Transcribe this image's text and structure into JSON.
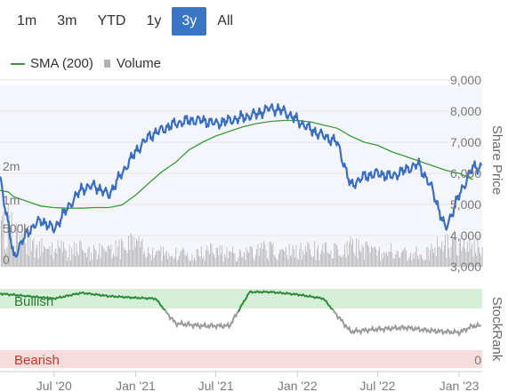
{
  "range_buttons": [
    {
      "label": "1m",
      "active": false
    },
    {
      "label": "3m",
      "active": false
    },
    {
      "label": "YTD",
      "active": false
    },
    {
      "label": "1y",
      "active": false
    },
    {
      "label": "3y",
      "active": true
    },
    {
      "label": "All",
      "active": false
    }
  ],
  "legend": {
    "sma_label": "SMA (200)",
    "volume_label": "Volume"
  },
  "colors": {
    "price": "#3a6fc0",
    "sma": "#3a9c3a",
    "volume": "#b3b3b3",
    "bullish_bg": "#d6efd9",
    "bearish_bg": "#f7dcdc",
    "rank_bull": "#2e8b3a",
    "rank_bear": "#9a9a9a",
    "active_button": "#3a75c4"
  },
  "chart_data": [
    {
      "type": "line",
      "x": [
        "2020-03-01",
        "2020-03-20",
        "2020-04-01",
        "2020-05-01",
        "2020-06-01",
        "2020-07-01",
        "2020-08-01",
        "2020-09-01",
        "2020-10-01",
        "2020-11-01",
        "2020-12-01",
        "2021-01-01",
        "2021-02-01",
        "2021-03-01",
        "2021-04-01",
        "2021-05-01",
        "2021-06-01",
        "2021-07-01",
        "2021-08-01",
        "2021-09-01",
        "2021-10-01",
        "2021-11-01",
        "2021-12-01",
        "2022-01-01",
        "2022-02-01",
        "2022-03-01",
        "2022-04-01",
        "2022-05-01",
        "2022-06-01",
        "2022-07-01",
        "2022-08-01",
        "2022-09-01",
        "2022-10-01",
        "2022-11-01",
        "2022-12-01",
        "2023-01-01",
        "2023-02-01"
      ],
      "series": [
        {
          "name": "Share Price",
          "axis": "right",
          "values": [
            5900,
            4300,
            3300,
            4100,
            4500,
            4200,
            4900,
            5500,
            5600,
            5300,
            6000,
            6700,
            7200,
            7400,
            7600,
            7700,
            7700,
            7600,
            7700,
            7800,
            7900,
            8100,
            8000,
            7700,
            7400,
            7200,
            7000,
            5600,
            5900,
            6000,
            5900,
            6100,
            6300,
            5500,
            4200,
            5300,
            6200
          ]
        },
        {
          "name": "SMA (200)",
          "axis": "right",
          "values": [
            5450,
            5400,
            5250,
            5100,
            4950,
            4900,
            4880,
            4880,
            4900,
            4900,
            4980,
            5300,
            5700,
            6050,
            6350,
            6750,
            7000,
            7200,
            7350,
            7500,
            7600,
            7670,
            7700,
            7700,
            7650,
            7550,
            7450,
            7200,
            7000,
            6900,
            6700,
            6550,
            6400,
            6250,
            6100,
            6000,
            5800
          ]
        },
        {
          "name": "Volume",
          "axis": "left",
          "values": [
            600000,
            900000,
            700000,
            500000,
            400000,
            400000,
            300000,
            350000,
            300000,
            300000,
            400000,
            450000,
            350000,
            300000,
            250000,
            250000,
            300000,
            300000,
            250000,
            300000,
            300000,
            350000,
            300000,
            300000,
            350000,
            350000,
            300000,
            400000,
            350000,
            300000,
            300000,
            250000,
            300000,
            350000,
            450000,
            400000,
            400000
          ]
        }
      ],
      "x_ticks": [
        "Jul '20",
        "Jan '21",
        "Jul '21",
        "Jan '22",
        "Jul '22",
        "Jan '23"
      ],
      "y_right_ticks": [
        "3,000",
        "4,000",
        "5,000",
        "6,000",
        "7,000",
        "8,000",
        "9,000"
      ],
      "y_left_ticks": [
        "0",
        "500k",
        "1m",
        "2m"
      ],
      "ylabel_right": "Share Price",
      "ylim_right": [
        3000,
        9000
      ]
    },
    {
      "type": "line",
      "title": "StockRank",
      "zones": [
        {
          "label": "Bullish"
        },
        {
          "label": "Bearish"
        }
      ],
      "y_right_ticks": [
        "0"
      ],
      "ylim": [
        0,
        100
      ],
      "x": [
        "2020-03-01",
        "2020-05-01",
        "2020-07-01",
        "2020-09-01",
        "2020-11-01",
        "2021-01-01",
        "2021-02-15",
        "2021-04-01",
        "2021-06-01",
        "2021-08-01",
        "2021-09-15",
        "2021-11-01",
        "2022-01-01",
        "2022-03-01",
        "2022-05-01",
        "2022-07-01",
        "2022-09-01",
        "2022-11-01",
        "2023-01-01",
        "2023-02-01"
      ],
      "series": [
        {
          "name": "StockRank",
          "values": [
            91,
            88,
            85,
            92,
            88,
            86,
            85,
            55,
            52,
            52,
            93,
            93,
            90,
            85,
            45,
            48,
            50,
            46,
            44,
            52
          ]
        }
      ]
    }
  ]
}
